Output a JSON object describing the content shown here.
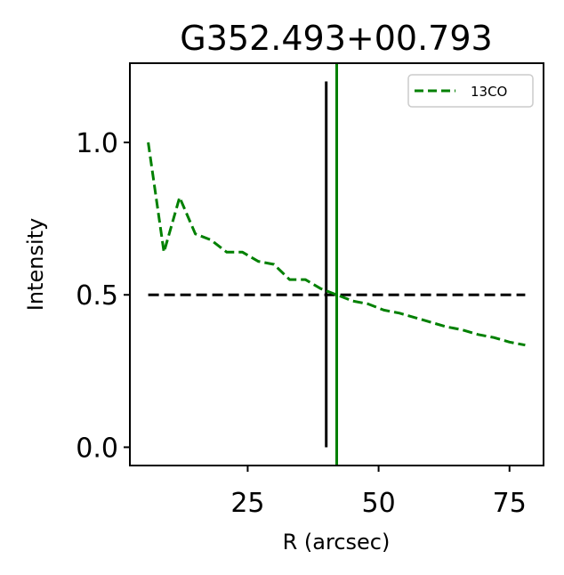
{
  "chart_data": {
    "type": "line",
    "title": "G352.493+00.793",
    "xlabel": "R (arcsec)",
    "ylabel": "Intensity",
    "xlim": [
      2.5,
      81.5
    ],
    "ylim": [
      -0.06,
      1.26
    ],
    "xticks": [
      25,
      50,
      75
    ],
    "xtick_labels": [
      "25",
      "50",
      "75"
    ],
    "yticks": [
      0.0,
      0.5,
      1.0
    ],
    "ytick_labels": [
      "0.0",
      "0.5",
      "1.0"
    ],
    "grid": false,
    "legend": {
      "placement": "upper right",
      "entries": [
        "13CO"
      ]
    },
    "series": [
      {
        "name": "13CO",
        "color": "#008000",
        "linestyle": "dashed",
        "x": [
          6,
          9,
          12,
          15,
          18,
          21,
          24,
          27,
          30,
          33,
          36,
          39,
          42,
          45,
          48,
          51,
          54,
          57,
          60,
          63,
          66,
          69,
          72,
          75,
          78
        ],
        "y": [
          1.0,
          0.64,
          0.82,
          0.7,
          0.68,
          0.64,
          0.64,
          0.61,
          0.6,
          0.55,
          0.55,
          0.52,
          0.5,
          0.48,
          0.47,
          0.45,
          0.44,
          0.425,
          0.41,
          0.395,
          0.385,
          0.37,
          0.36,
          0.345,
          0.335
        ]
      }
    ],
    "reference_lines": [
      {
        "kind": "horizontal",
        "y": 0.5,
        "x_from": 6,
        "x_to": 78,
        "color": "#000000",
        "linestyle": "dashed"
      },
      {
        "kind": "vertical",
        "x": 40,
        "y_from": 0.0,
        "y_to": 1.2,
        "color": "#000000",
        "linestyle": "solid"
      },
      {
        "kind": "vertical",
        "x": 42,
        "span": "full",
        "color": "#008000",
        "linestyle": "solid"
      }
    ]
  }
}
